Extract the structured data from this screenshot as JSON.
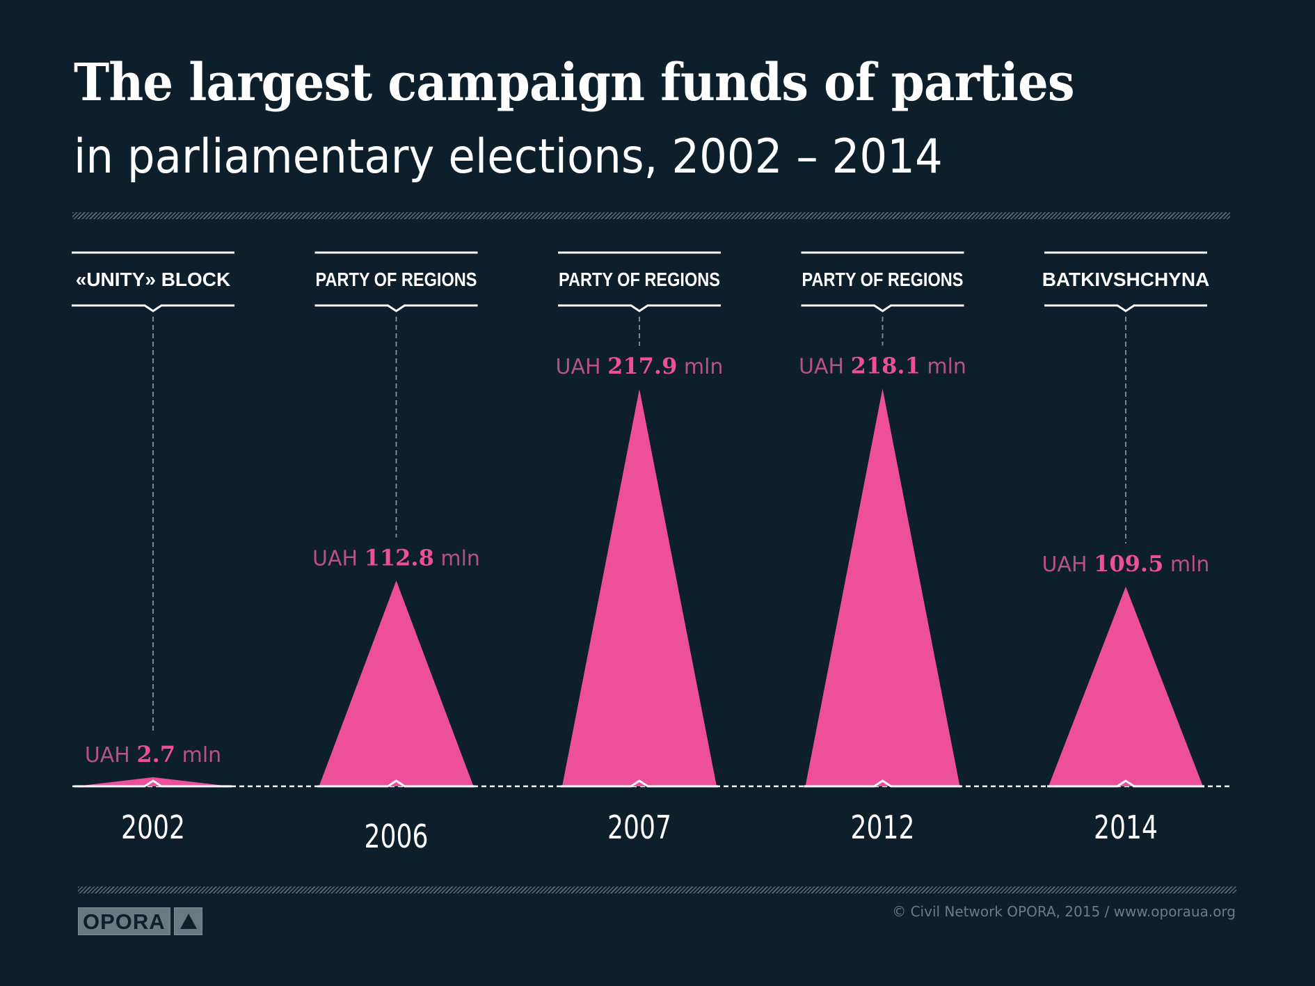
{
  "header": {
    "title": "The largest campaign funds of parties",
    "subtitle": "in parliamentary elections, 2002 – 2014"
  },
  "colors": {
    "background": "#0c1f2b",
    "accent": "#ee4f9b",
    "accent_muted": "#b8508a",
    "text": "#ffffff",
    "muted": "#6a7d86"
  },
  "chart_data": {
    "type": "area",
    "title": "The largest campaign funds of parties",
    "subtitle": "in parliamentary elections, 2002 – 2014",
    "unit": "UAH mln",
    "categories": [
      "2002",
      "2006",
      "2007",
      "2012",
      "2014"
    ],
    "parties": [
      "«UNITY» BLOCK",
      "PARTY OF REGIONS",
      "PARTY OF REGIONS",
      "PARTY OF REGIONS",
      "BATKIVSHCHYNA"
    ],
    "values": [
      2.7,
      112.8,
      217.9,
      218.1,
      109.5
    ],
    "value_labels": [
      {
        "prefix": "UAH",
        "number": "2.7",
        "suffix": "mln"
      },
      {
        "prefix": "UAH",
        "number": "112.8",
        "suffix": "mln"
      },
      {
        "prefix": "UAH",
        "number": "217.9",
        "suffix": "mln"
      },
      {
        "prefix": "UAH",
        "number": "218.1",
        "suffix": "mln"
      },
      {
        "prefix": "UAH",
        "number": "109.5",
        "suffix": "mln"
      }
    ],
    "xlabel": "",
    "ylabel": "",
    "grid": false,
    "legend": "none"
  },
  "footer": {
    "logo_text": "OPORA",
    "logo_icon": "triangle-up-icon",
    "copyright": "© Civil Network OPORA, 2015 / www.oporaua.org"
  }
}
